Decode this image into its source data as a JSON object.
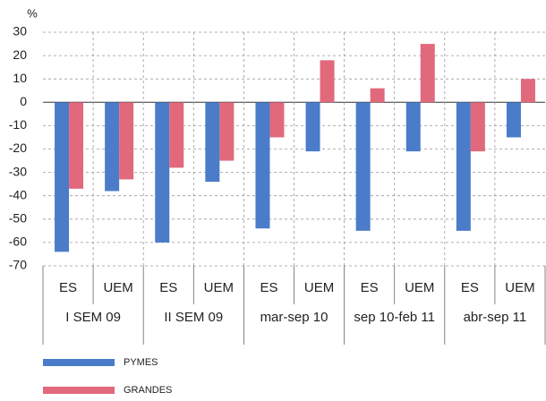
{
  "chart_data": {
    "type": "bar",
    "unit": "%",
    "categories": [
      "ES",
      "UEM",
      "ES",
      "UEM",
      "ES",
      "UEM",
      "ES",
      "UEM",
      "ES",
      "UEM"
    ],
    "groups": [
      "I SEM 09",
      "II SEM 09",
      "mar-sep 10",
      "sep 10-feb 11",
      "abr-sep 11"
    ],
    "series": [
      {
        "name": "PYMES",
        "color": "#4a7cc9",
        "values": [
          -64,
          -38,
          -60,
          -34,
          -54,
          -21,
          -55,
          -21,
          -55,
          -15
        ]
      },
      {
        "name": "GRANDES",
        "color": "#e2697c",
        "values": [
          -37,
          -33,
          -28,
          -25,
          -15,
          18,
          6,
          25,
          -21,
          10
        ]
      }
    ],
    "ylim": [
      -70,
      30
    ],
    "yticks": [
      30,
      20,
      10,
      0,
      -10,
      -20,
      -30,
      -40,
      -50,
      -60,
      -70
    ],
    "grid": true
  }
}
